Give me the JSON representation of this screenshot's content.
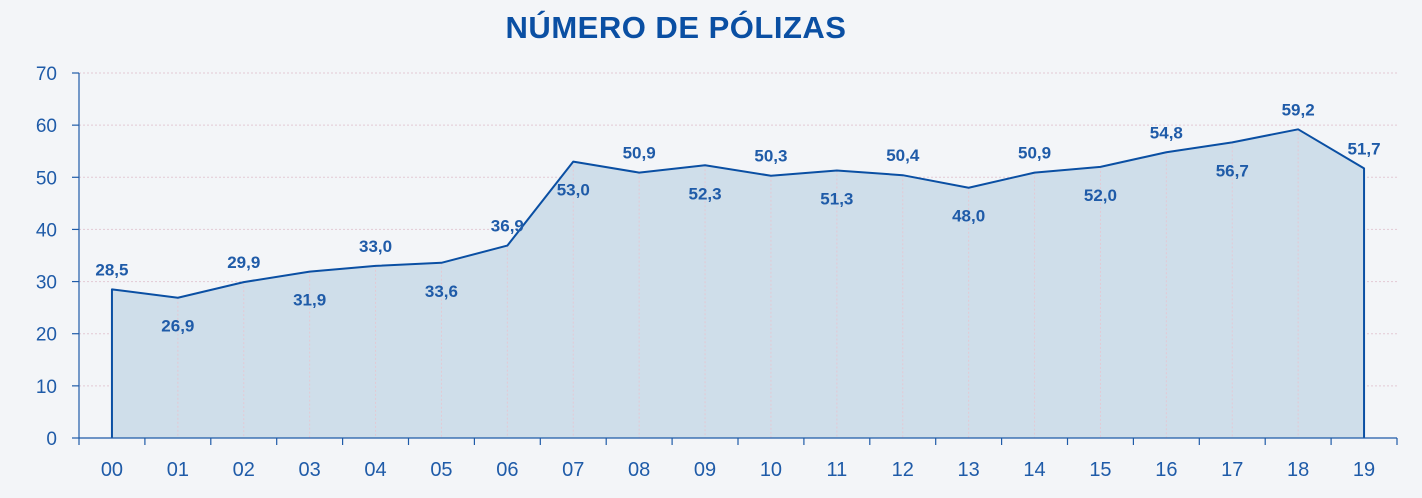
{
  "chart_data": {
    "type": "area",
    "title": "NÚMERO DE PÓLIZAS",
    "xlabel": "",
    "ylabel": "",
    "categories": [
      "00",
      "01",
      "02",
      "03",
      "04",
      "05",
      "06",
      "07",
      "08",
      "09",
      "10",
      "11",
      "12",
      "13",
      "14",
      "15",
      "16",
      "17",
      "18",
      "19"
    ],
    "series": [
      {
        "values": [
          28.5,
          26.9,
          29.9,
          31.9,
          33.0,
          33.6,
          36.9,
          53.0,
          50.9,
          52.3,
          50.3,
          51.3,
          50.4,
          48.0,
          50.9,
          52.0,
          54.8,
          56.7,
          59.2,
          51.7
        ],
        "data_labels": [
          "28,5",
          "26,9",
          "29,9",
          "31,9",
          "33,0",
          "33,6",
          "36,9",
          "53,0",
          "50,9",
          "52,3",
          "50,3",
          "51,3",
          "50,4",
          "48,0",
          "50,9",
          "52,0",
          "54,8",
          "56,7",
          "59,2",
          "51,7"
        ],
        "label_position": [
          "above",
          "below",
          "above",
          "below",
          "above",
          "below",
          "above",
          "below",
          "above",
          "below",
          "above",
          "below",
          "above",
          "below",
          "above",
          "below",
          "above",
          "below",
          "above",
          "above"
        ]
      }
    ],
    "ylim": [
      0,
      70
    ],
    "yticks": [
      0,
      10,
      20,
      30,
      40,
      50,
      60,
      70
    ],
    "grid": true,
    "colors": {
      "line": "#0a4fa3",
      "fill": "#cfdeea",
      "text": "#1f5ba8",
      "title": "#0a4fa3",
      "grid": "#e3c9d4",
      "axis": "#1f5ba8",
      "background": "#f3f5f8"
    }
  }
}
